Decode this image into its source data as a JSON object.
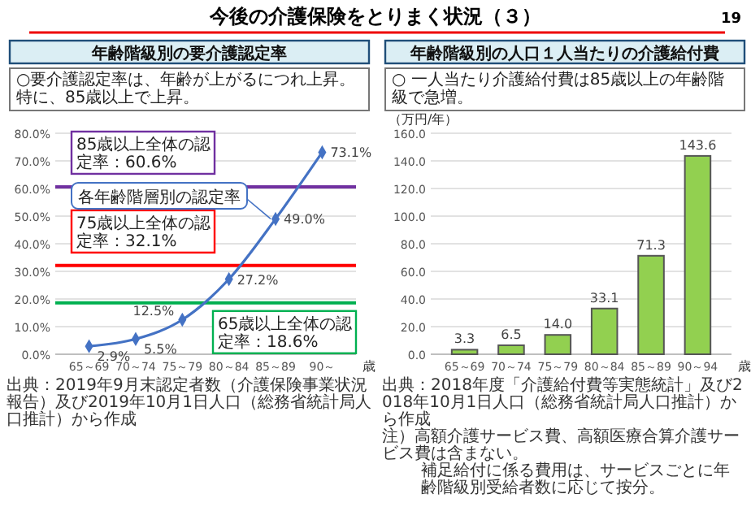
{
  "chart_data": [
    {
      "type": "line",
      "title": "年齢階級別の要介護認定率",
      "subtitle": "○要介護認定率は、年齢が上がるにつれ上昇。特に、85歳以上で上昇。",
      "categories": [
        "65～69",
        "70～74",
        "75～79",
        "80～84",
        "85～89",
        "90～"
      ],
      "xlabel": "歳",
      "series": [
        {
          "name": "各年齢階層別の認定率",
          "color": "#4472c4",
          "values": [
            2.9,
            5.5,
            12.5,
            27.2,
            49.0,
            73.1
          ],
          "value_labels": [
            "2.9%",
            "5.5%",
            "12.5%",
            "27.2%",
            "49.0%",
            "73.1%"
          ]
        }
      ],
      "marker": "diamond",
      "grid": "y",
      "ylim": [
        0,
        80
      ],
      "yticks": [
        {
          "value": 0,
          "label": "0.0%"
        },
        {
          "value": 10,
          "label": "10.0%"
        },
        {
          "value": 20,
          "label": "20.0%"
        },
        {
          "value": 30,
          "label": "30.0%"
        },
        {
          "value": 40,
          "label": "40.0%"
        },
        {
          "value": 50,
          "label": "50.0%"
        },
        {
          "value": 60,
          "label": "60.0%"
        },
        {
          "value": 70,
          "label": "70.0%"
        },
        {
          "value": 80,
          "label": "80.0%"
        }
      ],
      "ref_lines": [
        {
          "axis": "y",
          "value": 60.6,
          "label": "85歳以上全体の認定率：60.6%",
          "color": "#7030a0"
        },
        {
          "axis": "y",
          "value": 32.1,
          "label": "75歳以上全体の認定率：32.1%",
          "color": "#ff0000"
        },
        {
          "axis": "y",
          "value": 18.6,
          "label": "65歳以上全体の認定率：18.6%",
          "color": "#00b050"
        }
      ],
      "annotations": [
        "今後の介護保険をとりまく状況（３）",
        "出典：2019年9月末認定者数（介護保険事業状況報告）及び2019年10月1日人口（総務省統計局人口推計）から作成"
      ]
    },
    {
      "type": "bar",
      "title": "年齢階級別の人口１人当たりの介護給付費",
      "subtitle": "○ 一人当たり介護給付費は85歳以上の年齢階級で急増。",
      "categories": [
        "65～69",
        "70～74",
        "75～79",
        "80～84",
        "85～89",
        "90～94"
      ],
      "xlabel": "歳",
      "ylabel": "（万円/年）",
      "values": [
        3.3,
        6.5,
        14.0,
        33.1,
        71.3,
        143.6
      ],
      "value_labels": [
        "3.3",
        "6.5",
        "14.0",
        "33.1",
        "71.3",
        "143.6"
      ],
      "color": "#92d050",
      "grid": "y",
      "ylim": [
        0,
        160
      ],
      "yticks": [
        {
          "value": 0,
          "label": "0.0"
        },
        {
          "value": 20,
          "label": "20.0"
        },
        {
          "value": 40,
          "label": "40.0"
        },
        {
          "value": 60,
          "label": "60.0"
        },
        {
          "value": 80,
          "label": "80.0"
        },
        {
          "value": 100,
          "label": "100.0"
        },
        {
          "value": 120,
          "label": "120.0"
        },
        {
          "value": 140,
          "label": "140.0"
        },
        {
          "value": 160,
          "label": "160.0"
        }
      ],
      "annotations": [
        "出典：2018年度「介護給付費等実態統計」及び2018年10月1日人口（総務省統計局人口推計）から作成",
        "注）高額介護サービス費、高額医療合算介護サービス費は含まない。",
        "補足給付に係る費用は、サービスごとに年齢階級別受給者数に応じて按分。",
        "19"
      ]
    }
  ]
}
